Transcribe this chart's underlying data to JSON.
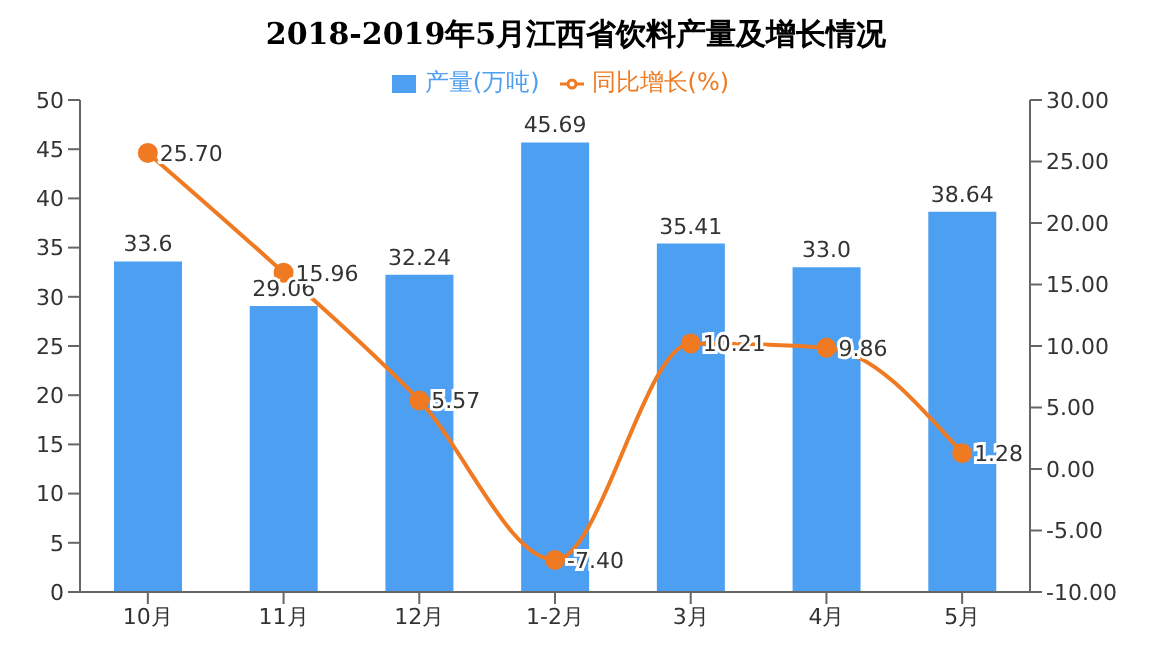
{
  "chart_data": {
    "type": "bar",
    "title": "2018-2019年5月江西省饮料产量及增长情况",
    "categories": [
      "10月",
      "11月",
      "12月",
      "1-2月",
      "3月",
      "4月",
      "5月"
    ],
    "series": [
      {
        "name": "产量(万吨)",
        "color": "#4d9ff2",
        "values": [
          33.6,
          29.06,
          32.24,
          45.69,
          35.41,
          33.0,
          38.64
        ],
        "value_labels": [
          "33.6",
          "29.06",
          "32.24",
          "45.69",
          "35.41",
          "33.0",
          "38.64"
        ]
      },
      {
        "type": "line",
        "name": "同比增长(%)",
        "color": "#f07a22",
        "axis": "y2",
        "values": [
          25.7,
          15.96,
          5.57,
          -7.4,
          10.21,
          9.86,
          1.28
        ],
        "value_labels": [
          "25.70",
          "15.96",
          "5.57",
          "-7.40",
          "10.21",
          "9.86",
          "1.28"
        ]
      }
    ],
    "ylim": [
      0,
      50
    ],
    "yticks": [
      0,
      5,
      10,
      15,
      20,
      25,
      30,
      35,
      40,
      45,
      50
    ],
    "y2lim": [
      -10,
      30
    ],
    "y2ticks": [
      {
        "value": -10,
        "label": "-10.00"
      },
      {
        "value": -5,
        "label": "-5.00"
      },
      {
        "value": 0,
        "label": "0.00"
      },
      {
        "value": 5,
        "label": "5.00"
      },
      {
        "value": 10,
        "label": "10.00"
      },
      {
        "value": 15,
        "label": "15.00"
      },
      {
        "value": 20,
        "label": "20.00"
      },
      {
        "value": 25,
        "label": "25.00"
      },
      {
        "value": 30,
        "label": "30.00"
      }
    ],
    "legend": "top",
    "marker": "circle"
  }
}
